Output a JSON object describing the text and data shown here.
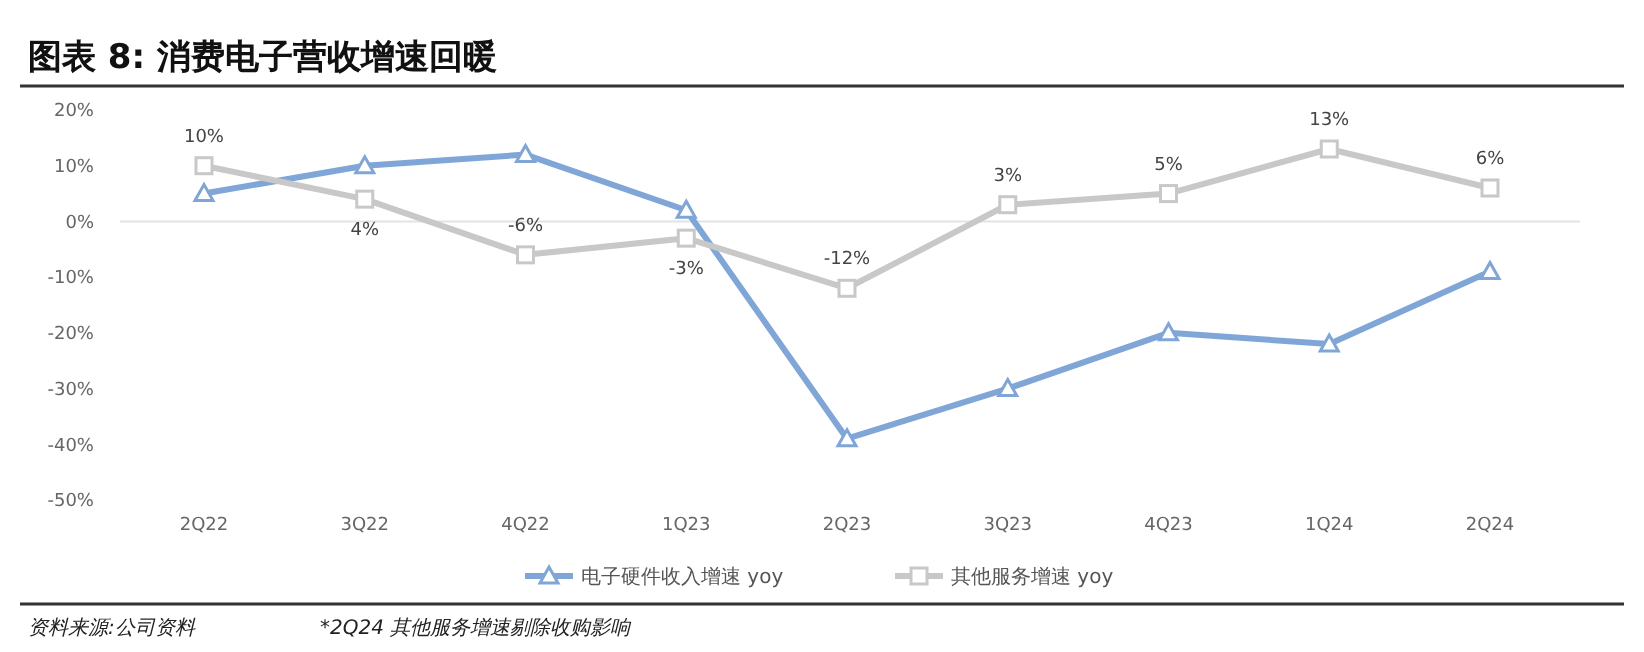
{
  "chart_data": {
    "type": "line",
    "title": "图表 8: 消费电子营收增速回暖",
    "categories": [
      "2Q22",
      "3Q22",
      "4Q22",
      "1Q23",
      "2Q23",
      "3Q23",
      "4Q23",
      "1Q24",
      "2Q24"
    ],
    "series": [
      {
        "name": "电子硬件收入增速 yoy",
        "color": "#7fa6d6",
        "marker": "triangle",
        "values": [
          5,
          10,
          12,
          2,
          -39,
          -30,
          -20,
          -22,
          -9
        ]
      },
      {
        "name": "其他服务增速 yoy",
        "color": "#c8c8c8",
        "marker": "square",
        "values": [
          10,
          4,
          -6,
          -3,
          -12,
          3,
          5,
          13,
          6
        ],
        "value_labels": [
          "10%",
          "4%",
          "-6%",
          "-3%",
          "-12%",
          "3%",
          "5%",
          "13%",
          "6%"
        ]
      }
    ],
    "ylim": [
      -50,
      20
    ],
    "yticks": [
      {
        "value": -50,
        "label": "-50%"
      },
      {
        "value": -40,
        "label": "-40%"
      },
      {
        "value": -30,
        "label": "-30%"
      },
      {
        "value": -20,
        "label": "-20%"
      },
      {
        "value": -10,
        "label": "-10%"
      },
      {
        "value": 0,
        "label": "0%"
      },
      {
        "value": 10,
        "label": "10%"
      },
      {
        "value": 20,
        "label": "20%"
      }
    ],
    "ref_lines": [
      {
        "axis": "y",
        "value": 0,
        "color": "#e3e3e3"
      }
    ],
    "grid": false,
    "legend": "bottom",
    "line_style": "solid",
    "annotations": [
      "资料来源:公司资料",
      "*2Q24 其他服务增速剔除收购影响"
    ]
  }
}
